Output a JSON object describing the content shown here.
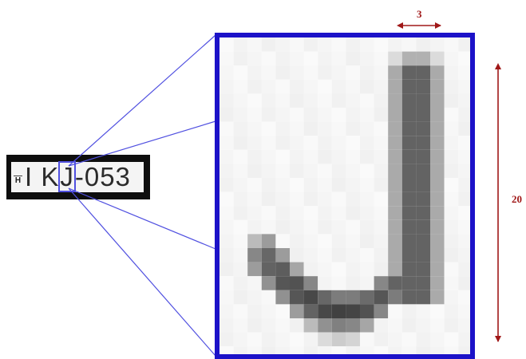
{
  "plate": {
    "region_mark": "H",
    "chars_before": "I K",
    "highlighted_char": "J",
    "chars_after": "-053"
  },
  "dimensions": {
    "width_label": "3",
    "height_label": "20"
  },
  "colors": {
    "frame": "#1c12c8",
    "zoom_lines": "#5050e0",
    "dimension": "#a01818",
    "plate_bg": "#0e0e0e"
  }
}
